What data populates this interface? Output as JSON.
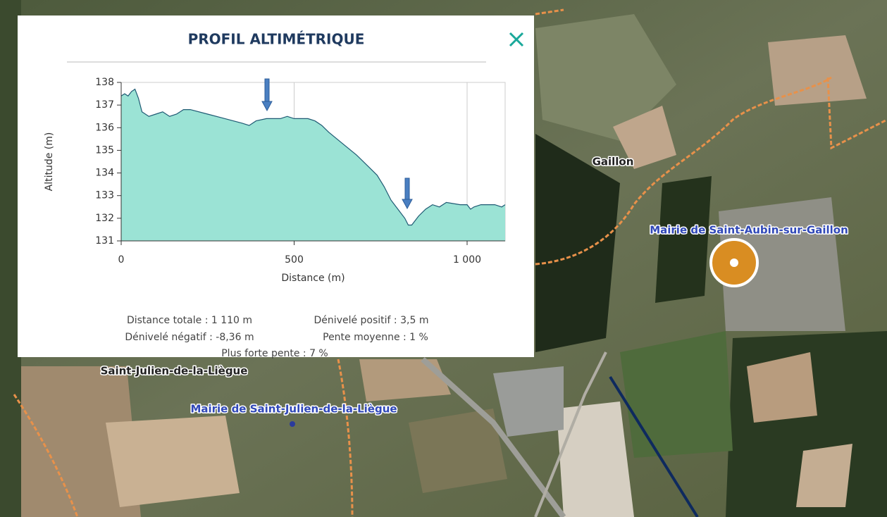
{
  "panel": {
    "title": "PROFIL ALTIMÉTRIQUE",
    "stats": [
      [
        "Distance totale : 1 110 m",
        "Dénivelé positif : 3,5 m"
      ],
      [
        "Dénivelé négatif : -8,36 m",
        "Pente moyenne : 1 %"
      ],
      [
        "Plus forte pente : 7 %"
      ]
    ]
  },
  "chart_data": {
    "type": "area",
    "xlabel": "Distance (m)",
    "ylabel": "Altitude (m)",
    "color": "#9be3d5",
    "line_color": "#1f5a73",
    "grid": "x",
    "x": [
      0,
      10,
      20,
      30,
      40,
      50,
      60,
      80,
      100,
      120,
      140,
      160,
      180,
      200,
      250,
      300,
      350,
      370,
      390,
      420,
      460,
      480,
      500,
      540,
      560,
      580,
      600,
      640,
      680,
      720,
      740,
      760,
      780,
      800,
      820,
      830,
      840,
      860,
      880,
      900,
      920,
      940,
      980,
      1000,
      1010,
      1020,
      1040,
      1080,
      1100,
      1110
    ],
    "values": [
      137.4,
      137.5,
      137.4,
      137.6,
      137.7,
      137.3,
      136.7,
      136.5,
      136.6,
      136.7,
      136.5,
      136.6,
      136.8,
      136.8,
      136.6,
      136.4,
      136.2,
      136.1,
      136.3,
      136.4,
      136.4,
      136.5,
      136.4,
      136.4,
      136.3,
      136.1,
      135.8,
      135.3,
      134.8,
      134.2,
      133.9,
      133.4,
      132.8,
      132.4,
      132.0,
      131.7,
      131.7,
      132.1,
      132.4,
      132.6,
      132.5,
      132.7,
      132.6,
      132.6,
      132.4,
      132.5,
      132.6,
      132.6,
      132.5,
      132.6
    ],
    "xlim": [
      0,
      1110
    ],
    "ylim": [
      131,
      138
    ],
    "xticks": [
      0,
      500,
      {
        "value": 1000,
        "label": "1 000"
      }
    ],
    "yticks": [
      131,
      132,
      133,
      134,
      135,
      136,
      137,
      138
    ]
  },
  "map": {
    "labels": [
      "Gaillon",
      "Mairie de Saint-Aubin-sur-Gaillon",
      "Saint-Julien-de-la-Liègue",
      "Mairie de Saint-Julien-de-la-Liègue"
    ]
  }
}
